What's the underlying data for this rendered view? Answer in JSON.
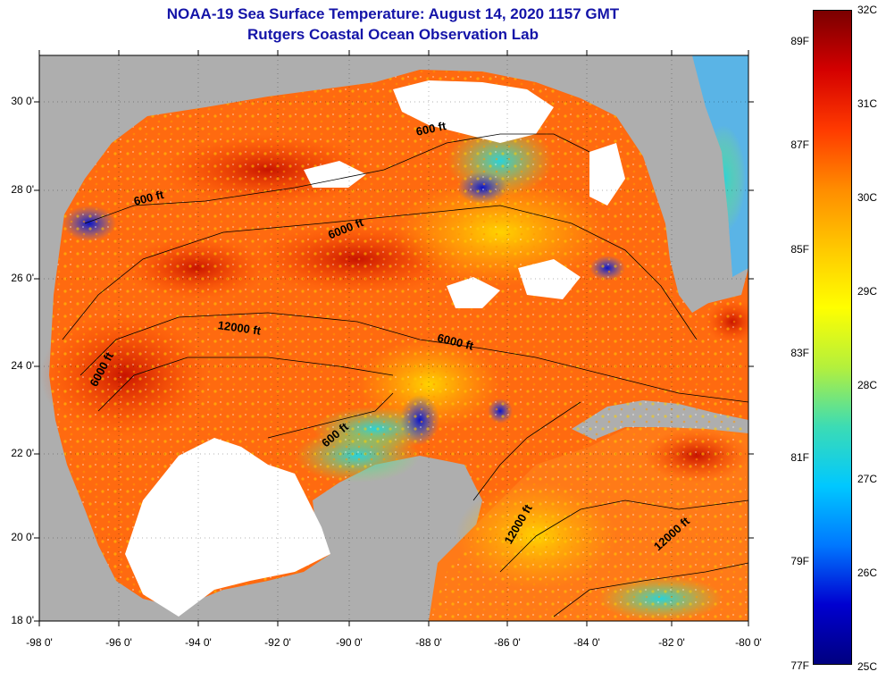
{
  "title": {
    "line1": "NOAA-19 Sea Surface Temperature:  August 14, 2020 1157 GMT",
    "line2": "Rutgers Coastal Ocean Observation Lab"
  },
  "lat_labels": [
    "30 0'",
    "28 0'",
    "26 0'",
    "24 0'",
    "22 0'",
    "20 0'",
    "18 0'"
  ],
  "lon_labels": [
    "-98 0'",
    "-96 0'",
    "-94 0'",
    "-92 0'",
    "-90 0'",
    "-88 0'",
    "-86 0'",
    "-84 0'",
    "-82 0'",
    "-80 0'"
  ],
  "depth_contour_labels": [
    "600 ft",
    "600 ft",
    "6000 ft",
    "12000 ft",
    "6000 ft",
    "6000 ft",
    "600 ft",
    "12000 ft",
    "12000 ft"
  ],
  "colorbar": {
    "celsius": [
      "32C",
      "31C",
      "30C",
      "29C",
      "28C",
      "27C",
      "26C",
      "25C"
    ],
    "fahrenheit": [
      "89F",
      "87F",
      "85F",
      "83F",
      "81F",
      "79F",
      "77F"
    ],
    "colors": [
      "#7a0000",
      "#d40000",
      "#ff3a00",
      "#ff8c00",
      "#ffc800",
      "#ffff00",
      "#b4f03c",
      "#3cdcb4",
      "#00c8ff",
      "#0078ff",
      "#0000d0",
      "#000080"
    ]
  },
  "colors": {
    "land": "#aeaeae",
    "cloud": "#ffffff",
    "title": "#1414a8"
  }
}
